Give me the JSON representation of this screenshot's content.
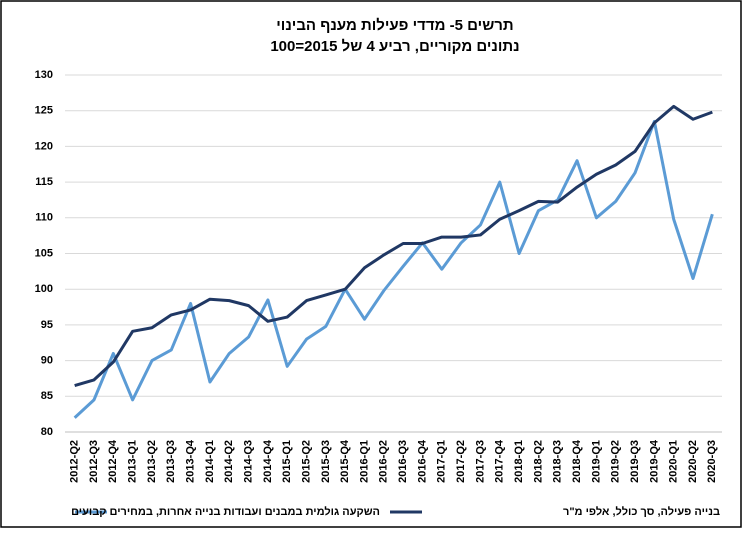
{
  "chart_data": {
    "type": "line",
    "title": "תרשים 5- מדדי פעילות מענף הבינוי",
    "subtitle": "נתונים מקוריים, רביע 4 של 2015=100",
    "categories": [
      "2012-Q2",
      "2012-Q3",
      "2012-Q4",
      "2013-Q1",
      "2013-Q2",
      "2013-Q3",
      "2013-Q4",
      "2014-Q1",
      "2014-Q2",
      "2014-Q3",
      "2014-Q4",
      "2015-Q1",
      "2015-Q2",
      "2015-Q3",
      "2015-Q4",
      "2016-Q1",
      "2016-Q2",
      "2016-Q3",
      "2016-Q4",
      "2017-Q1",
      "2017-Q2",
      "2017-Q3",
      "2017-Q4",
      "2018-Q1",
      "2018-Q2",
      "2018-Q3",
      "2018-Q4",
      "2019-Q1",
      "2019-Q2",
      "2019-Q3",
      "2019-Q4",
      "2020-Q1",
      "2020-Q2",
      "2020-Q3"
    ],
    "series": [
      {
        "name": "השקעה גולמית במבנים ועבודות בנייה אחרות, במחירים קבועים",
        "color": "#5b9bd5",
        "values": [
          82,
          84.5,
          91,
          84.5,
          90,
          91.5,
          98,
          87,
          91,
          93.3,
          98.5,
          89.2,
          93,
          94.8,
          100,
          95.8,
          99.8,
          103.2,
          106.5,
          102.8,
          106.5,
          109,
          115,
          105,
          111,
          112.5,
          118,
          110,
          112.3,
          116.3,
          123.5,
          109.8,
          101.5,
          110.5
        ]
      },
      {
        "name": "בנייה פעילה, סך כולל, אלפי מ\"ר",
        "color": "#203864",
        "values": [
          86.5,
          87.3,
          89.8,
          94.1,
          94.6,
          96.4,
          97.1,
          98.6,
          98.4,
          97.7,
          95.5,
          96.1,
          98.4,
          99.2,
          100,
          103,
          104.8,
          106.4,
          106.4,
          107.3,
          107.3,
          107.6,
          109.8,
          111,
          112.3,
          112.2,
          114.3,
          116.1,
          117.4,
          119.3,
          123.3,
          125.6,
          123.8,
          124.8
        ]
      }
    ],
    "ylim": [
      80,
      130
    ],
    "yticks": [
      80,
      85,
      90,
      95,
      100,
      105,
      110,
      115,
      120,
      125,
      130
    ],
    "grid": true
  }
}
